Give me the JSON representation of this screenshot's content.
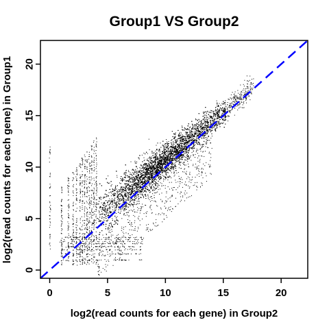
{
  "chart_data": {
    "type": "scatter",
    "title": "Group1 VS Group2",
    "xlabel": "log2(read counts for each gene) in Group2",
    "ylabel": "log2(read counts for each gene) in Group1",
    "xlim": [
      -0.8,
      22.3
    ],
    "ylim": [
      -0.8,
      22.3
    ],
    "xticks": [
      0,
      5,
      10,
      15,
      20
    ],
    "yticks": [
      0,
      5,
      10,
      15,
      20
    ],
    "grid": false,
    "reference_line": {
      "slope": 1,
      "intercept": 0,
      "color": "#0000ff",
      "style": "dashed"
    },
    "series": [
      {
        "color": "#000000",
        "density": [
          {
            "x": 4.5,
            "y": 5.6,
            "sd": 0.8
          },
          {
            "x": 6.0,
            "y": 7.2,
            "sd": 0.7
          },
          {
            "x": 8.0,
            "y": 9.2,
            "sd": 0.7
          },
          {
            "x": 10.0,
            "y": 11.0,
            "sd": 0.6
          },
          {
            "x": 12.0,
            "y": 12.8,
            "sd": 0.6
          },
          {
            "x": 14.0,
            "y": 14.5,
            "sd": 0.6
          },
          {
            "x": 16.0,
            "y": 16.2,
            "sd": 0.5
          }
        ]
      }
    ]
  }
}
